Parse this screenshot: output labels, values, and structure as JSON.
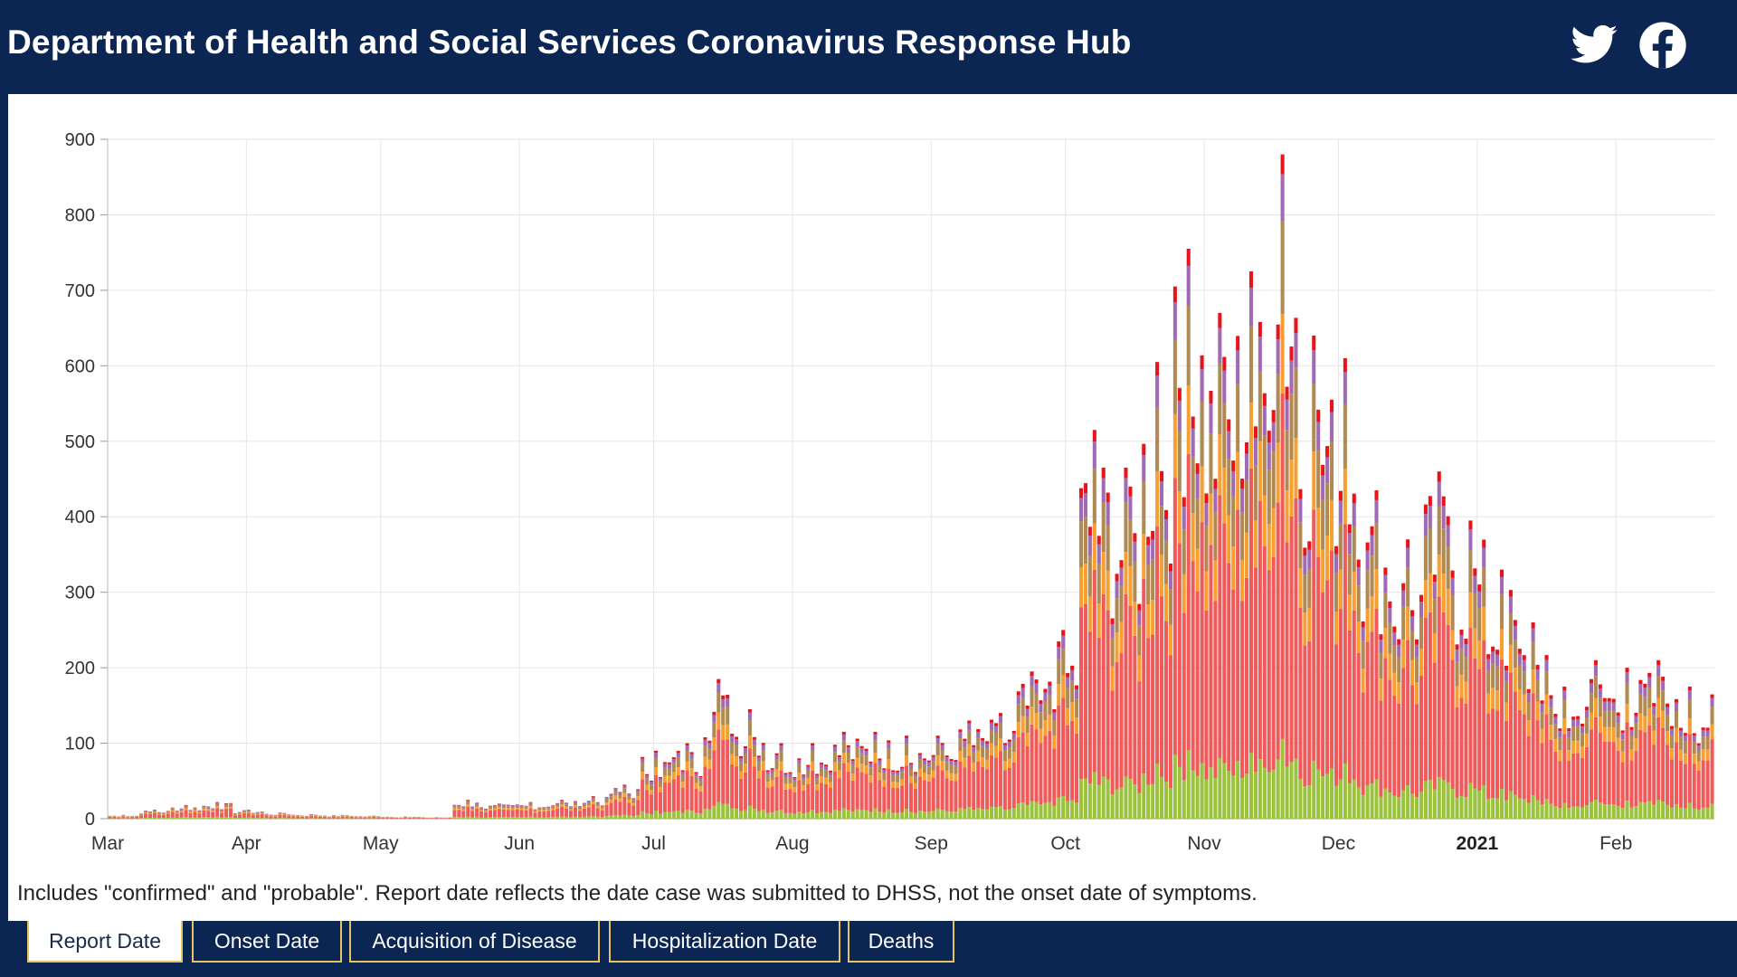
{
  "header": {
    "title": "Department of Health and Social Services Coronavirus Response Hub",
    "icons": [
      "twitter-icon",
      "facebook-icon"
    ]
  },
  "footnote": "Includes \"confirmed\" and \"probable\". Report date reflects the date case was submitted to DHSS, not the onset date of symptoms.",
  "tabs": [
    {
      "label": "Report Date",
      "active": true
    },
    {
      "label": "Onset Date",
      "active": false
    },
    {
      "label": "Acquisition of Disease",
      "active": false
    },
    {
      "label": "Hospitalization Date",
      "active": false
    },
    {
      "label": "Deaths",
      "active": false
    }
  ],
  "colors": {
    "background": "#0c2654",
    "tab_border": "#e7c463",
    "series": [
      "#9bc23c",
      "#ef5b5b",
      "#f7a031",
      "#b08a52",
      "#a06bb4",
      "#e8141b"
    ]
  },
  "chart_data": {
    "type": "bar",
    "stacked": true,
    "x_axis": "date",
    "ylim": [
      0,
      900
    ],
    "yticks": [
      0,
      100,
      200,
      300,
      400,
      500,
      600,
      700,
      800,
      900
    ],
    "xticks": [
      {
        "label": "Mar",
        "date": "2020-03-01",
        "bold": false
      },
      {
        "label": "Apr",
        "date": "2020-04-01",
        "bold": false
      },
      {
        "label": "May",
        "date": "2020-05-01",
        "bold": false
      },
      {
        "label": "Jun",
        "date": "2020-06-01",
        "bold": false
      },
      {
        "label": "Jul",
        "date": "2020-07-01",
        "bold": false
      },
      {
        "label": "Aug",
        "date": "2020-08-01",
        "bold": false
      },
      {
        "label": "Sep",
        "date": "2020-09-01",
        "bold": false
      },
      {
        "label": "Oct",
        "date": "2020-10-01",
        "bold": false
      },
      {
        "label": "Nov",
        "date": "2020-11-01",
        "bold": false
      },
      {
        "label": "Dec",
        "date": "2020-12-01",
        "bold": false
      },
      {
        "label": "2021",
        "date": "2021-01-01",
        "bold": true
      },
      {
        "label": "Feb",
        "date": "2021-02-01",
        "bold": false
      }
    ],
    "grid": true,
    "legend": "none",
    "weekly_totals": [
      {
        "week_of": "2020-03-01",
        "max_daily": 5
      },
      {
        "week_of": "2020-03-08",
        "max_daily": 12
      },
      {
        "week_of": "2020-03-15",
        "max_daily": 18
      },
      {
        "week_of": "2020-03-22",
        "max_daily": 22
      },
      {
        "week_of": "2020-03-29",
        "max_daily": 12
      },
      {
        "week_of": "2020-04-05",
        "max_daily": 8
      },
      {
        "week_of": "2020-04-12",
        "max_daily": 6
      },
      {
        "week_of": "2020-04-19",
        "max_daily": 5
      },
      {
        "week_of": "2020-04-26",
        "max_daily": 4
      },
      {
        "week_of": "2020-05-03",
        "max_daily": 3
      },
      {
        "week_of": "2020-05-10",
        "max_daily": 2
      },
      {
        "week_of": "2020-05-17",
        "max_daily": 25
      },
      {
        "week_of": "2020-05-24",
        "max_daily": 20
      },
      {
        "week_of": "2020-05-31",
        "max_daily": 22
      },
      {
        "week_of": "2020-06-07",
        "max_daily": 25
      },
      {
        "week_of": "2020-06-14",
        "max_daily": 30
      },
      {
        "week_of": "2020-06-21",
        "max_daily": 45
      },
      {
        "week_of": "2020-06-28",
        "max_daily": 90
      },
      {
        "week_of": "2020-07-05",
        "max_daily": 100
      },
      {
        "week_of": "2020-07-12",
        "max_daily": 185
      },
      {
        "week_of": "2020-07-19",
        "max_daily": 145
      },
      {
        "week_of": "2020-07-26",
        "max_daily": 100
      },
      {
        "week_of": "2020-08-02",
        "max_daily": 100
      },
      {
        "week_of": "2020-08-09",
        "max_daily": 115
      },
      {
        "week_of": "2020-08-16",
        "max_daily": 115
      },
      {
        "week_of": "2020-08-23",
        "max_daily": 110
      },
      {
        "week_of": "2020-08-30",
        "max_daily": 110
      },
      {
        "week_of": "2020-09-06",
        "max_daily": 130
      },
      {
        "week_of": "2020-09-13",
        "max_daily": 140
      },
      {
        "week_of": "2020-09-20",
        "max_daily": 195
      },
      {
        "week_of": "2020-09-27",
        "max_daily": 250
      },
      {
        "week_of": "2020-10-04",
        "max_daily": 515
      },
      {
        "week_of": "2020-10-11",
        "max_daily": 465
      },
      {
        "week_of": "2020-10-18",
        "max_daily": 605
      },
      {
        "week_of": "2020-10-25",
        "max_daily": 755
      },
      {
        "week_of": "2020-11-01",
        "max_daily": 670
      },
      {
        "week_of": "2020-11-08",
        "max_daily": 725
      },
      {
        "week_of": "2020-11-15",
        "max_daily": 880
      },
      {
        "week_of": "2020-11-22",
        "max_daily": 640
      },
      {
        "week_of": "2020-11-29",
        "max_daily": 610
      },
      {
        "week_of": "2020-12-06",
        "max_daily": 435
      },
      {
        "week_of": "2020-12-13",
        "max_daily": 370
      },
      {
        "week_of": "2020-12-20",
        "max_daily": 460
      },
      {
        "week_of": "2020-12-27",
        "max_daily": 395
      },
      {
        "week_of": "2021-01-03",
        "max_daily": 330
      },
      {
        "week_of": "2021-01-10",
        "max_daily": 260
      },
      {
        "week_of": "2021-01-17",
        "max_daily": 175
      },
      {
        "week_of": "2021-01-24",
        "max_daily": 210
      },
      {
        "week_of": "2021-01-31",
        "max_daily": 200
      },
      {
        "week_of": "2021-02-07",
        "max_daily": 210
      },
      {
        "week_of": "2021-02-14",
        "max_daily": 175
      },
      {
        "week_of": "2021-02-21",
        "max_daily": 175
      }
    ]
  }
}
